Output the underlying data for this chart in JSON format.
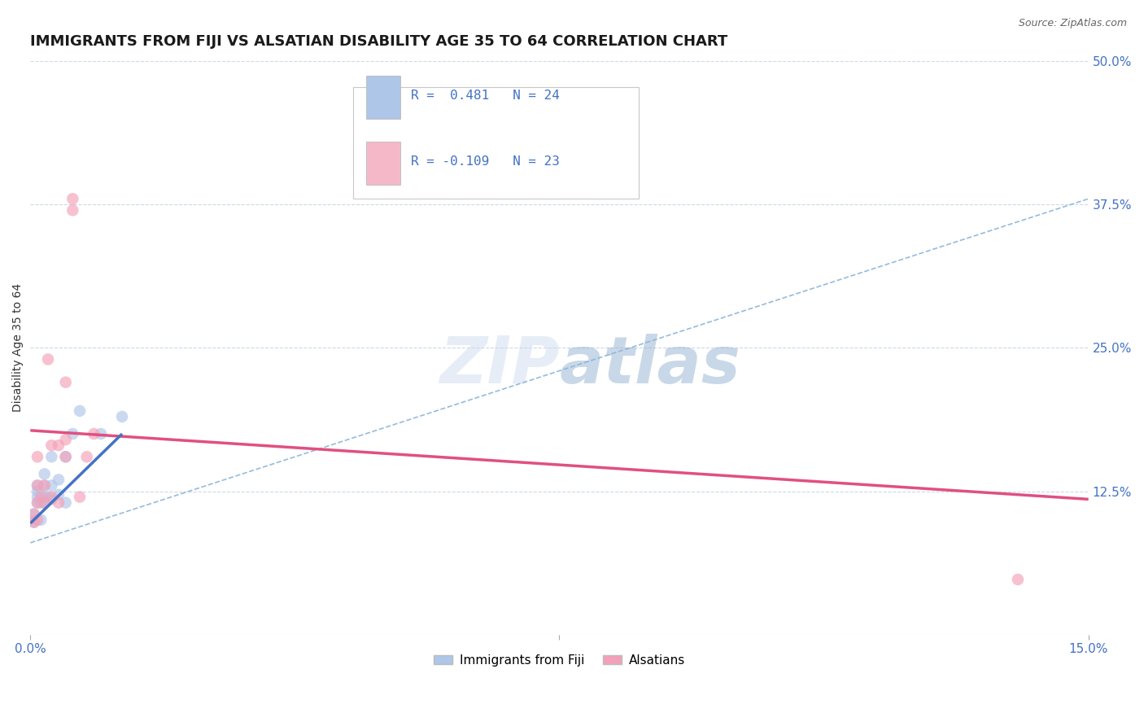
{
  "title": "IMMIGRANTS FROM FIJI VS ALSATIAN DISABILITY AGE 35 TO 64 CORRELATION CHART",
  "source_text": "Source: ZipAtlas.com",
  "ylabel": "Disability Age 35 to 64",
  "xmin": 0.0,
  "xmax": 0.15,
  "ymin": 0.0,
  "ymax": 0.5,
  "ytick_right_labels": [
    "12.5%",
    "25.0%",
    "37.5%",
    "50.0%"
  ],
  "ytick_right_values": [
    0.125,
    0.25,
    0.375,
    0.5
  ],
  "legend_r1": "R =  0.481   N = 24",
  "legend_r2": "R = -0.109   N = 23",
  "legend_color1": "#aec6e8",
  "legend_color2": "#f4b8c8",
  "fiji_scatter_x": [
    0.0005,
    0.0005,
    0.001,
    0.001,
    0.001,
    0.001,
    0.0015,
    0.0015,
    0.002,
    0.002,
    0.002,
    0.002,
    0.0025,
    0.003,
    0.003,
    0.003,
    0.004,
    0.004,
    0.005,
    0.005,
    0.006,
    0.007,
    0.01,
    0.013
  ],
  "fiji_scatter_y": [
    0.098,
    0.105,
    0.115,
    0.12,
    0.13,
    0.125,
    0.1,
    0.115,
    0.115,
    0.12,
    0.13,
    0.14,
    0.12,
    0.118,
    0.13,
    0.155,
    0.122,
    0.135,
    0.115,
    0.155,
    0.175,
    0.195,
    0.175,
    0.19
  ],
  "alsatian_scatter_x": [
    0.0005,
    0.0005,
    0.001,
    0.001,
    0.001,
    0.0015,
    0.002,
    0.002,
    0.0025,
    0.003,
    0.003,
    0.004,
    0.004,
    0.005,
    0.005,
    0.005,
    0.006,
    0.006,
    0.007,
    0.008,
    0.009,
    0.14,
    0.001
  ],
  "alsatian_scatter_y": [
    0.098,
    0.105,
    0.115,
    0.13,
    0.155,
    0.12,
    0.115,
    0.13,
    0.24,
    0.12,
    0.165,
    0.115,
    0.165,
    0.155,
    0.17,
    0.22,
    0.37,
    0.38,
    0.12,
    0.155,
    0.175,
    0.048,
    0.1
  ],
  "fiji_solid_line_x": [
    0.0,
    0.013
  ],
  "fiji_solid_line_y": [
    0.097,
    0.175
  ],
  "fiji_dashed_line_x": [
    0.0,
    0.15
  ],
  "fiji_dashed_line_y": [
    0.08,
    0.38
  ],
  "alsatian_line_x": [
    0.0,
    0.15
  ],
  "alsatian_line_y": [
    0.178,
    0.118
  ],
  "bg_color": "#ffffff",
  "grid_color": "#ccd8ec",
  "scatter_alpha": 0.65,
  "scatter_size": 110,
  "fiji_color": "#aec6e8",
  "alsatian_color": "#f4a0b8",
  "fiji_line_color": "#4472c4",
  "alsatian_line_color": "#e05080",
  "dashed_line_color": "#8ab4d8"
}
